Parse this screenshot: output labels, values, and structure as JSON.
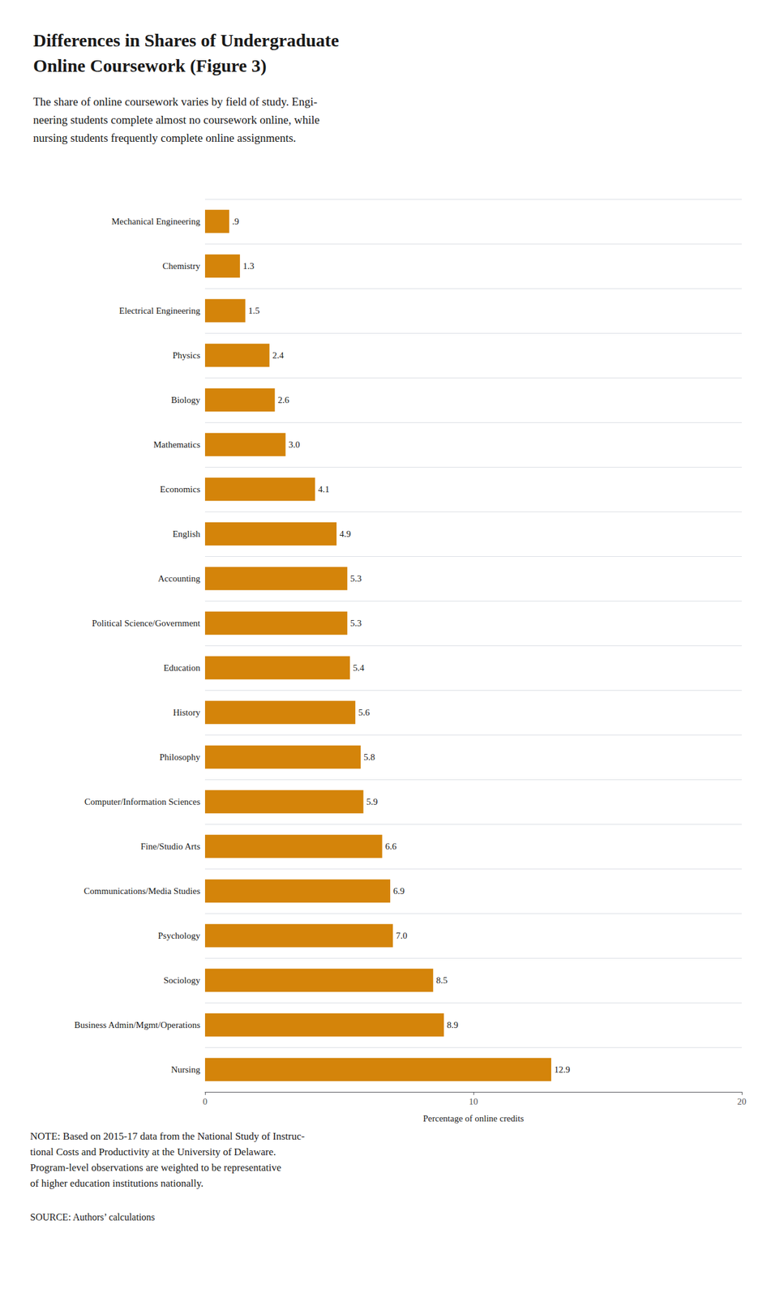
{
  "chart_data": {
    "type": "bar",
    "orientation": "horizontal",
    "title": "Differences in Shares of Undergraduate\nOnline Coursework (Figure 3)",
    "subtitle": "The share of online coursework varies by field of study. Engi-\nneering students complete almost no coursework online, while\nnursing students frequently complete online assignments.",
    "xlabel": "Percentage of online credits",
    "categories": [
      "Mechanical Engineering",
      "Chemistry",
      "Electrical Engineering",
      "Physics",
      "Biology",
      "Mathematics",
      "Economics",
      "English",
      "Accounting",
      "Political Science/Government",
      "Education",
      "History",
      "Philosophy",
      "Computer/Information Sciences",
      "Fine/Studio Arts",
      "Communications/Media Studies",
      "Psychology",
      "Sociology",
      "Business Admin/Mgmt/Operations",
      "Nursing"
    ],
    "values": [
      0.9,
      1.3,
      1.5,
      2.4,
      2.6,
      3.0,
      4.1,
      4.9,
      5.3,
      5.3,
      5.4,
      5.6,
      5.8,
      5.9,
      6.6,
      6.9,
      7.0,
      8.5,
      8.9,
      12.9
    ],
    "value_labels": [
      ".9",
      "1.3",
      "1.5",
      "2.4",
      "2.6",
      "3.0",
      "4.1",
      "4.9",
      "5.3",
      "5.3",
      "5.4",
      "5.6",
      "5.8",
      "5.9",
      "6.6",
      "6.9",
      "7.0",
      "8.5",
      "8.9",
      "12.9"
    ],
    "color": "#D4840A",
    "xlim": [
      0,
      20
    ],
    "xticks": [
      0,
      10,
      20
    ],
    "grid": true,
    "data_labels": true,
    "annotations": [
      "NOTE: Based on 2015-17 data from the National Study of Instruc-\ntional Costs and Productivity at the University of Delaware.\nProgram-level observations are weighted to be representative\nof higher education institutions nationally.",
      "SOURCE: Authors’ calculations"
    ]
  }
}
